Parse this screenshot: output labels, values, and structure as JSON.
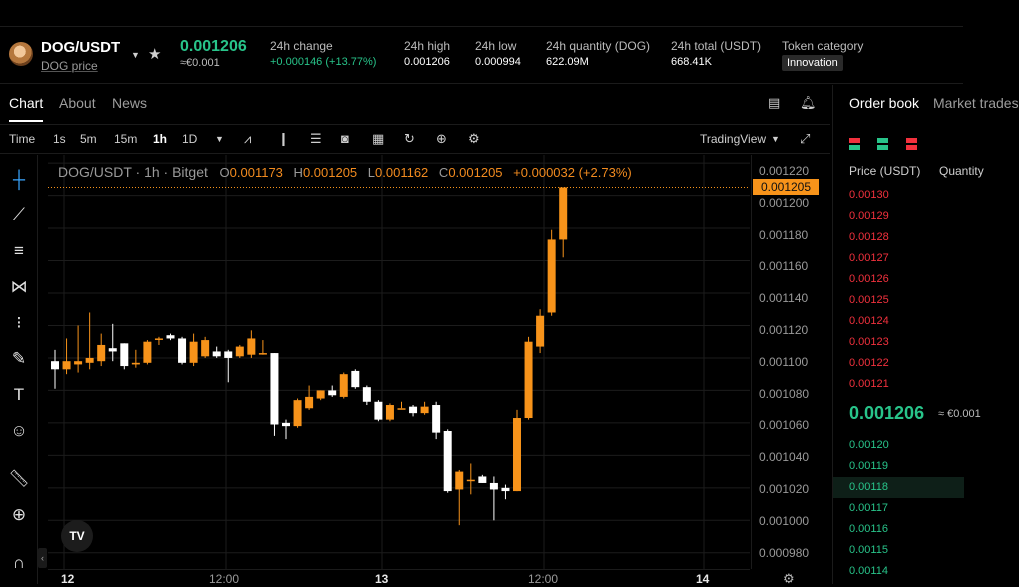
{
  "ticker": {
    "pair": "DOG/USDT",
    "subtitle": "DOG price",
    "last_price": "0.001206",
    "last_price_fiat": "≈€0.001",
    "stats": [
      {
        "label": "24h change",
        "value": "+0.000146 (+13.77%)",
        "color": "#28c48a"
      },
      {
        "label": "24h high",
        "value": "0.001206"
      },
      {
        "label": "24h low",
        "value": "0.000994"
      },
      {
        "label": "24h quantity (DOG)",
        "value": "622.09M"
      },
      {
        "label": "24h total (USDT)",
        "value": "668.41K"
      }
    ],
    "category_label": "Token category",
    "category_tag": "Innovation"
  },
  "chart_tabs": [
    "Chart",
    "About",
    "News"
  ],
  "toolbar": {
    "time_label": "Time",
    "intervals": [
      "1s",
      "5m",
      "15m",
      "1h",
      "1D"
    ],
    "active_interval": "1h",
    "view_label": "TradingView"
  },
  "legend": {
    "symbol": "DOG/USDT · 1h · Bitget",
    "open_key": "O",
    "open": "0.001173",
    "high_key": "H",
    "high": "0.001205",
    "low_key": "L",
    "low": "0.001162",
    "close_key": "C",
    "close": "0.001205",
    "change": "+0.000032 (+2.73%)"
  },
  "price_axis": {
    "ticks": [
      "0.001220",
      "0.001200",
      "0.001180",
      "0.001160",
      "0.001140",
      "0.001120",
      "0.001100",
      "0.001080",
      "0.001060",
      "0.001040",
      "0.001020",
      "0.001000",
      "0.000980"
    ],
    "current": "0.001205"
  },
  "time_axis": [
    {
      "label": "12",
      "bold": true
    },
    {
      "label": "12:00",
      "bold": false
    },
    {
      "label": "13",
      "bold": true
    },
    {
      "label": "12:00",
      "bold": false
    },
    {
      "label": "14",
      "bold": true
    }
  ],
  "colors": {
    "up": "#f7931a",
    "down": "#ffffff",
    "bid": "#28c48a",
    "ask": "#f2313d"
  },
  "chart_data": {
    "type": "candlestick",
    "interval": "1h",
    "ylim": [
      0.00097,
      0.001225
    ],
    "candles": [
      {
        "o": 0.001098,
        "h": 0.001105,
        "l": 0.001081,
        "c": 0.001093
      },
      {
        "o": 0.001093,
        "h": 0.001112,
        "l": 0.00109,
        "c": 0.001098
      },
      {
        "o": 0.001096,
        "h": 0.00112,
        "l": 0.001091,
        "c": 0.001098
      },
      {
        "o": 0.001097,
        "h": 0.001128,
        "l": 0.001093,
        "c": 0.0011
      },
      {
        "o": 0.001098,
        "h": 0.001115,
        "l": 0.001095,
        "c": 0.001108
      },
      {
        "o": 0.001106,
        "h": 0.001121,
        "l": 0.001098,
        "c": 0.001104
      },
      {
        "o": 0.001109,
        "h": 0.001109,
        "l": 0.001093,
        "c": 0.001095
      },
      {
        "o": 0.001096,
        "h": 0.001105,
        "l": 0.001094,
        "c": 0.001097
      },
      {
        "o": 0.001097,
        "h": 0.001111,
        "l": 0.001096,
        "c": 0.00111
      },
      {
        "o": 0.001112,
        "h": 0.001113,
        "l": 0.001108,
        "c": 0.001112
      },
      {
        "o": 0.001114,
        "h": 0.001115,
        "l": 0.001111,
        "c": 0.001112
      },
      {
        "o": 0.001112,
        "h": 0.001113,
        "l": 0.001096,
        "c": 0.001097
      },
      {
        "o": 0.001097,
        "h": 0.001115,
        "l": 0.001095,
        "c": 0.00111
      },
      {
        "o": 0.001101,
        "h": 0.001113,
        "l": 0.0011,
        "c": 0.001111
      },
      {
        "o": 0.001104,
        "h": 0.001107,
        "l": 0.0011,
        "c": 0.001101
      },
      {
        "o": 0.001104,
        "h": 0.001105,
        "l": 0.001085,
        "c": 0.0011
      },
      {
        "o": 0.001101,
        "h": 0.001108,
        "l": 0.0011,
        "c": 0.001107
      },
      {
        "o": 0.001102,
        "h": 0.001117,
        "l": 0.0011,
        "c": 0.001112
      },
      {
        "o": 0.001103,
        "h": 0.001111,
        "l": 0.001102,
        "c": 0.001103
      },
      {
        "o": 0.001103,
        "h": 0.001103,
        "l": 0.001052,
        "c": 0.001059
      },
      {
        "o": 0.00106,
        "h": 0.001062,
        "l": 0.00105,
        "c": 0.001058
      },
      {
        "o": 0.001058,
        "h": 0.001075,
        "l": 0.001057,
        "c": 0.001074
      },
      {
        "o": 0.001069,
        "h": 0.001083,
        "l": 0.001068,
        "c": 0.001076
      },
      {
        "o": 0.001075,
        "h": 0.00108,
        "l": 0.001074,
        "c": 0.00108
      },
      {
        "o": 0.00108,
        "h": 0.001083,
        "l": 0.001076,
        "c": 0.001077
      },
      {
        "o": 0.001076,
        "h": 0.001091,
        "l": 0.001075,
        "c": 0.00109
      },
      {
        "o": 0.001092,
        "h": 0.001093,
        "l": 0.001081,
        "c": 0.001082
      },
      {
        "o": 0.001082,
        "h": 0.001083,
        "l": 0.001071,
        "c": 0.001073
      },
      {
        "o": 0.001073,
        "h": 0.001074,
        "l": 0.001061,
        "c": 0.001062
      },
      {
        "o": 0.001062,
        "h": 0.001072,
        "l": 0.001061,
        "c": 0.001071
      },
      {
        "o": 0.001069,
        "h": 0.001073,
        "l": 0.001069,
        "c": 0.001069
      },
      {
        "o": 0.00107,
        "h": 0.001071,
        "l": 0.001064,
        "c": 0.001066
      },
      {
        "o": 0.001066,
        "h": 0.001073,
        "l": 0.001065,
        "c": 0.00107
      },
      {
        "o": 0.001071,
        "h": 0.001073,
        "l": 0.00105,
        "c": 0.001054
      },
      {
        "o": 0.001055,
        "h": 0.001056,
        "l": 0.001017,
        "c": 0.001018
      },
      {
        "o": 0.001019,
        "h": 0.001031,
        "l": 0.000997,
        "c": 0.00103
      },
      {
        "o": 0.001025,
        "h": 0.001035,
        "l": 0.001016,
        "c": 0.001025
      },
      {
        "o": 0.001027,
        "h": 0.001028,
        "l": 0.001023,
        "c": 0.001023
      },
      {
        "o": 0.001023,
        "h": 0.001027,
        "l": 0.001,
        "c": 0.001019
      },
      {
        "o": 0.00102,
        "h": 0.001022,
        "l": 0.001013,
        "c": 0.001018
      },
      {
        "o": 0.001018,
        "h": 0.001068,
        "l": 0.001018,
        "c": 0.001063
      },
      {
        "o": 0.001063,
        "h": 0.001113,
        "l": 0.001062,
        "c": 0.00111
      },
      {
        "o": 0.001107,
        "h": 0.00113,
        "l": 0.001103,
        "c": 0.001126
      },
      {
        "o": 0.001128,
        "h": 0.001179,
        "l": 0.001126,
        "c": 0.001173
      },
      {
        "o": 0.001173,
        "h": 0.001205,
        "l": 0.001162,
        "c": 0.001205
      }
    ]
  },
  "orderbook": {
    "tabs": [
      "Order book",
      "Market trades"
    ],
    "col_price": "Price (USDT)",
    "col_qty": "Quantity",
    "asks": [
      "0.00130",
      "0.00129",
      "0.00128",
      "0.00127",
      "0.00126",
      "0.00125",
      "0.00124",
      "0.00123",
      "0.00122",
      "0.00121"
    ],
    "mid": "0.001206",
    "mid_fiat": "≈ €0.001",
    "bids": [
      "0.00120",
      "0.00119",
      "0.00118",
      "0.00117",
      "0.00116",
      "0.00115",
      "0.00114"
    ]
  }
}
